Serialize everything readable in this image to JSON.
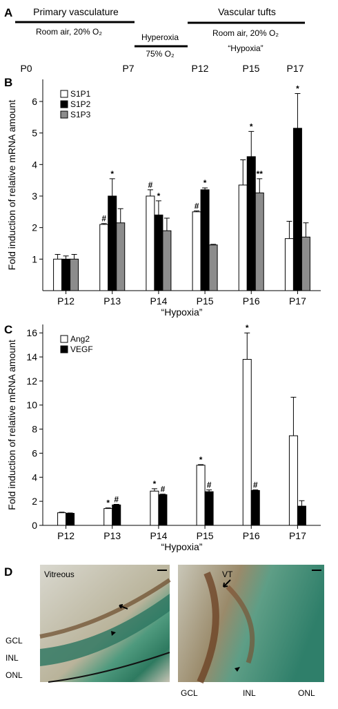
{
  "timeline": {
    "panel_label": "A",
    "phases": [
      {
        "title": "Primary vasculature",
        "condition": "Room air, 20% O₂"
      },
      {
        "title": "Hyperoxia",
        "condition": "75% O₂"
      },
      {
        "title": "Vascular tufts",
        "condition": "Room air, 20% O₂",
        "note": "“Hypoxia”"
      }
    ],
    "timepoints": [
      "P0",
      "P7",
      "P12",
      "P15",
      "P17"
    ]
  },
  "chart_data": [
    {
      "type": "bar",
      "panel_label": "B",
      "ylabel": "Fold induction of relative mRNA amount",
      "xlabel": "“Hypoxia”",
      "categories": [
        "P12",
        "P13",
        "P14",
        "P15",
        "P16",
        "P17"
      ],
      "ylim": [
        0,
        6.7
      ],
      "yticks": [
        1,
        2,
        3,
        4,
        5,
        6
      ],
      "legend": "top-left",
      "series": [
        {
          "name": "S1P1",
          "color": "#ffffff",
          "values": [
            1.0,
            2.1,
            3.0,
            2.5,
            3.35,
            1.65
          ],
          "errors": [
            0.15,
            0.03,
            0.2,
            0.03,
            0.8,
            0.55
          ],
          "markers": [
            null,
            "#",
            "#",
            "#",
            null,
            null
          ]
        },
        {
          "name": "S1P2",
          "color": "#000000",
          "values": [
            1.0,
            3.0,
            2.4,
            3.2,
            4.25,
            5.15
          ],
          "errors": [
            0.1,
            0.55,
            0.45,
            0.06,
            0.8,
            1.1
          ],
          "markers": [
            null,
            "*",
            "*",
            "*",
            "*",
            "*"
          ]
        },
        {
          "name": "S1P3",
          "color": "#8c8c8c",
          "values": [
            1.0,
            2.15,
            1.9,
            1.45,
            3.1,
            1.7
          ],
          "errors": [
            0.15,
            0.45,
            0.4,
            0.02,
            0.45,
            0.45
          ],
          "markers": [
            null,
            null,
            null,
            null,
            "**",
            null
          ]
        }
      ]
    },
    {
      "type": "bar",
      "panel_label": "C",
      "ylabel": "Fold induction of relative mRNA amount",
      "xlabel": "“Hypoxia”",
      "categories": [
        "P12",
        "P13",
        "P14",
        "P15",
        "P16",
        "P17"
      ],
      "ylim": [
        0,
        16.7
      ],
      "yticks": [
        0,
        2,
        4,
        6,
        8,
        10,
        12,
        14,
        16
      ],
      "legend": "top-left",
      "series": [
        {
          "name": "Ang2",
          "color": "#ffffff",
          "values": [
            1.05,
            1.4,
            2.85,
            5.0,
            13.8,
            7.45
          ],
          "errors": [
            0.05,
            0.05,
            0.2,
            0.05,
            2.2,
            3.2
          ],
          "markers": [
            null,
            "*",
            "*",
            "*",
            "*",
            null
          ]
        },
        {
          "name": "VEGF",
          "color": "#000000",
          "values": [
            1.0,
            1.7,
            2.55,
            2.8,
            2.9,
            1.6
          ],
          "errors": [
            0.03,
            0.05,
            0.05,
            0.15,
            0.05,
            0.45
          ],
          "markers": [
            null,
            "#",
            "#",
            "#",
            "#",
            null
          ]
        }
      ]
    }
  ],
  "micrographs": {
    "panel_label": "D",
    "left": {
      "title": "Vitreous",
      "layers": [
        "GCL",
        "INL",
        "ONL"
      ]
    },
    "right": {
      "title": "VT",
      "layers": [
        "GCL",
        "INL",
        "ONL"
      ]
    }
  }
}
